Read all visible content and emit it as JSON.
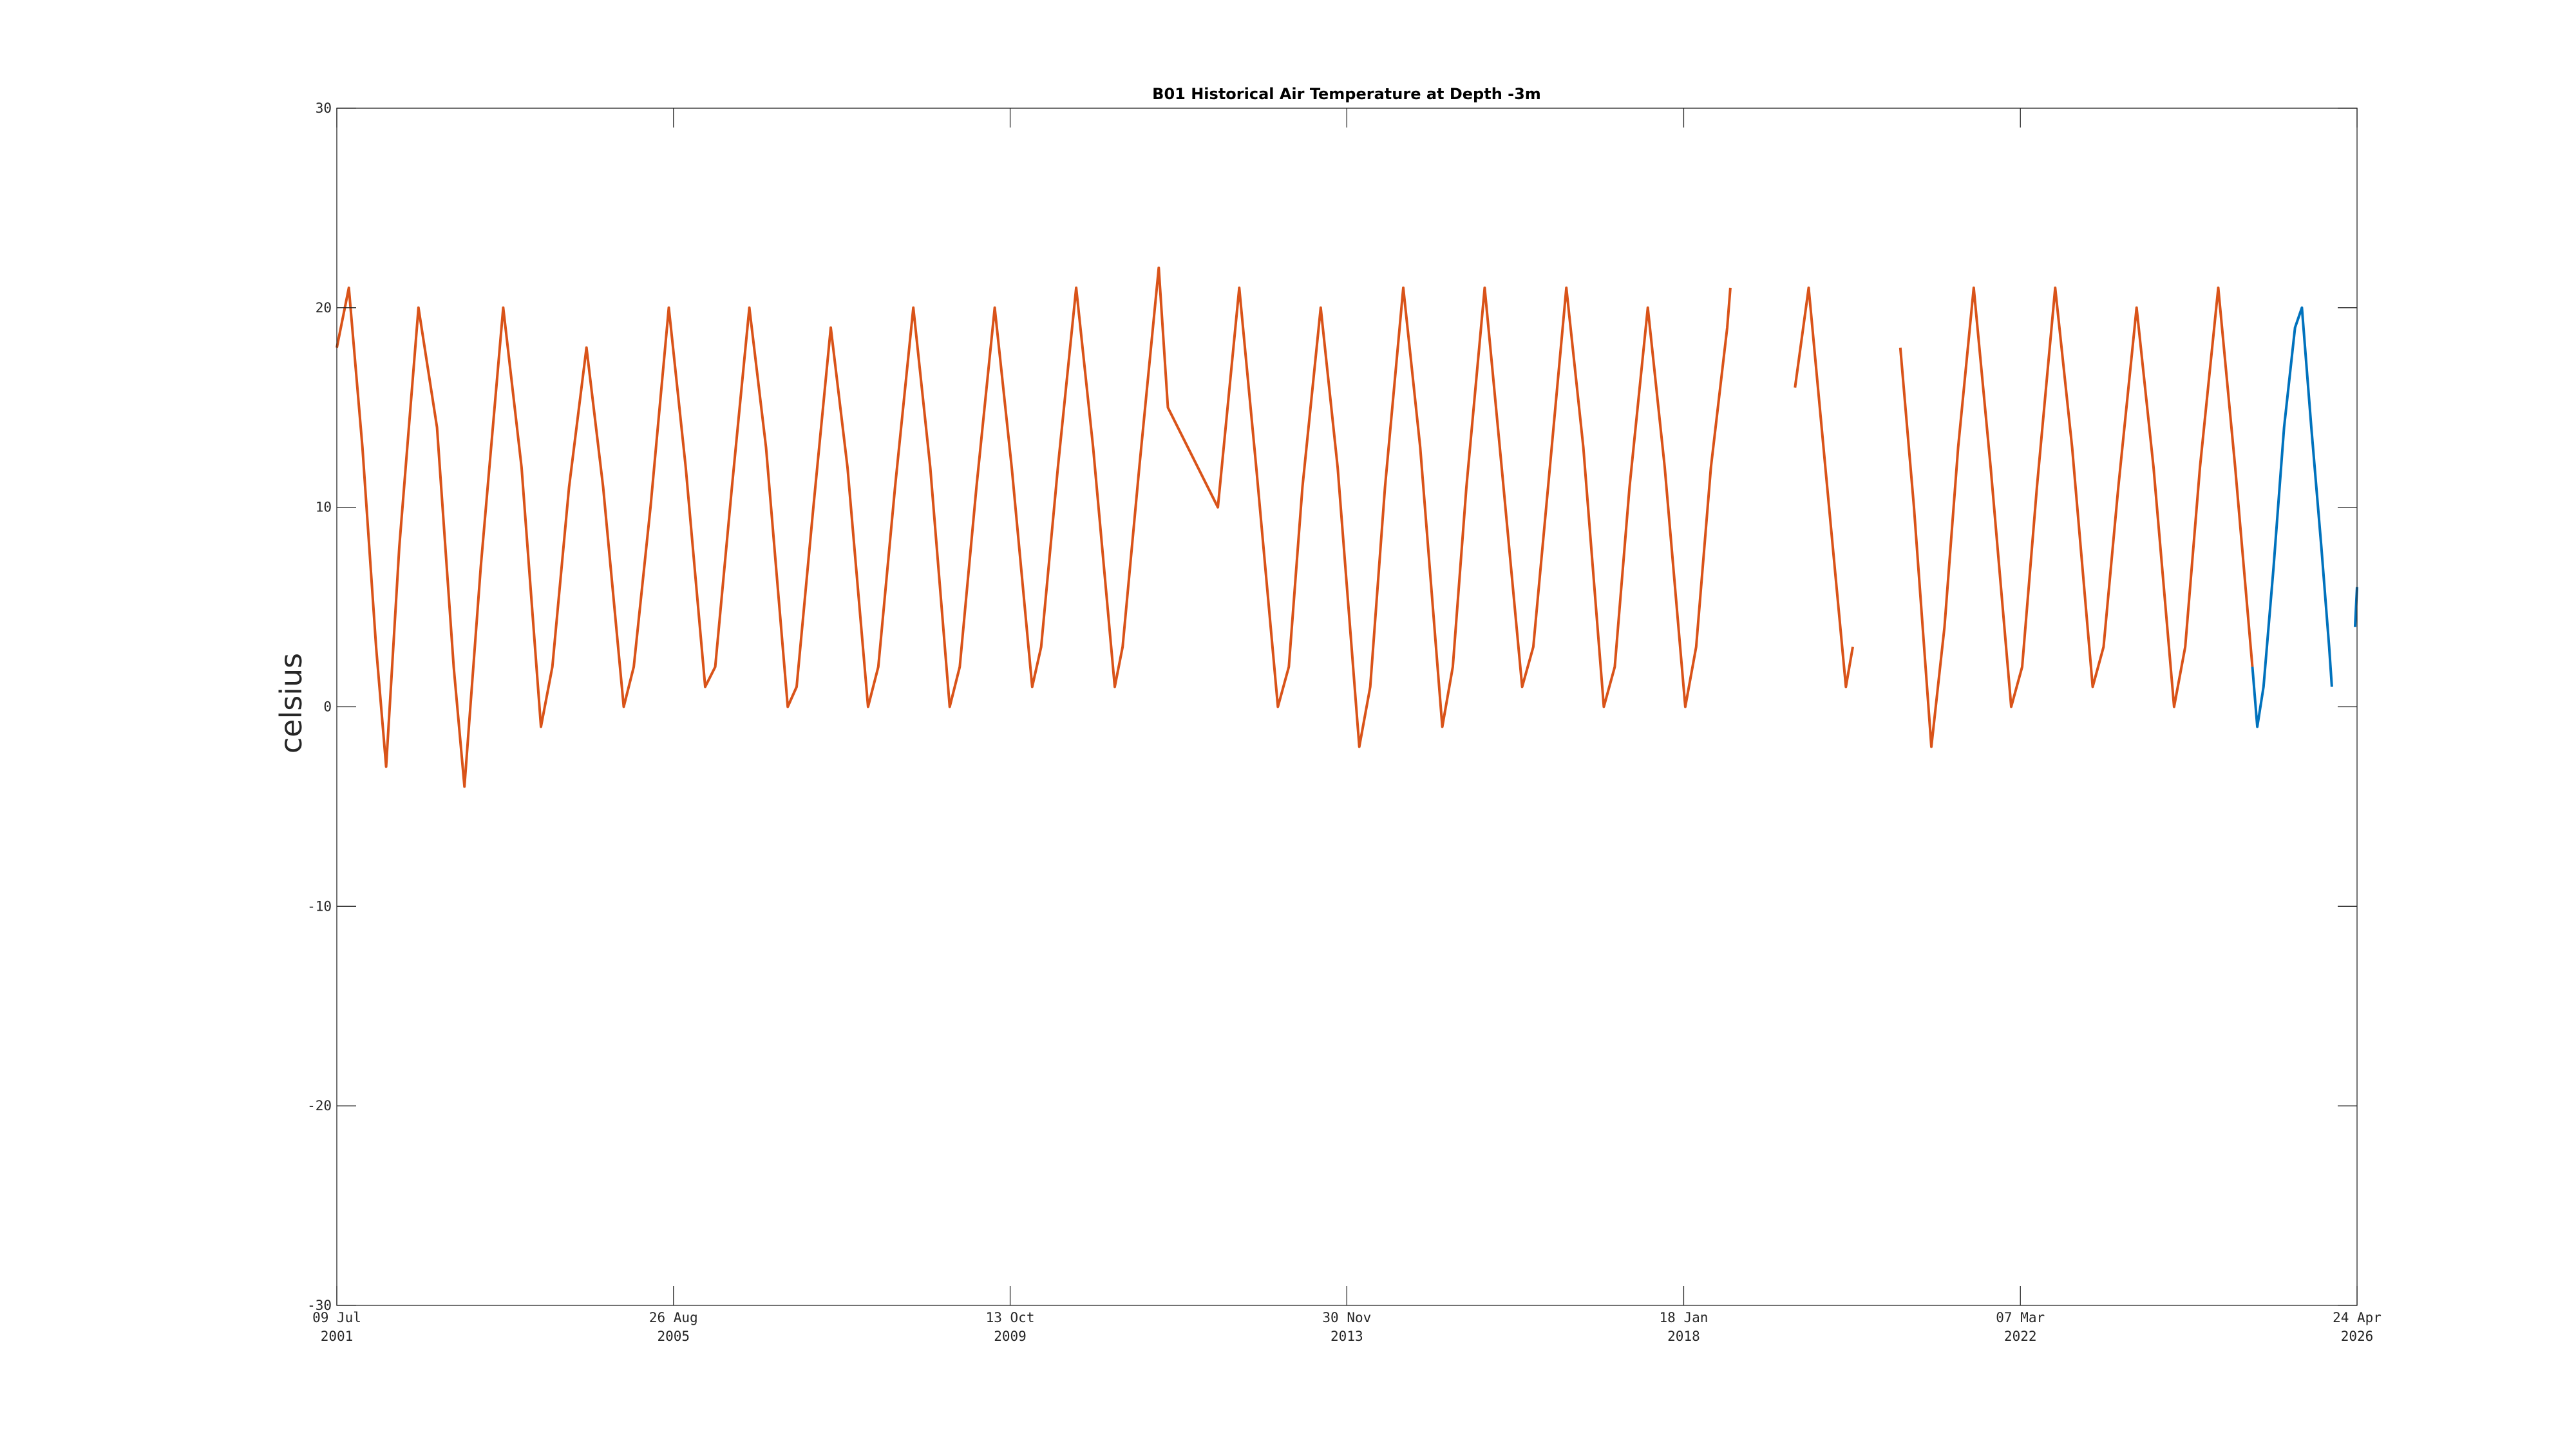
{
  "chart_data": {
    "type": "line",
    "title": "B01 Historical Air Temperature at Depth -3m",
    "ylabel": "celsius",
    "xlabel": "",
    "ylim": [
      -30,
      30
    ],
    "xlim": [
      "2001-07-09",
      "2026-04-24"
    ],
    "grid": false,
    "yticks": [
      {
        "value": -30,
        "label": "-30"
      },
      {
        "value": -20,
        "label": "-20"
      },
      {
        "value": -10,
        "label": "-10"
      },
      {
        "value": 0,
        "label": "0"
      },
      {
        "value": 10,
        "label": "10"
      },
      {
        "value": 20,
        "label": "20"
      },
      {
        "value": 30,
        "label": "30"
      }
    ],
    "xticks": [
      {
        "date": "2001-07-09",
        "line1": "09 Jul",
        "line2": "2001"
      },
      {
        "date": "2005-08-26",
        "line1": "26 Aug",
        "line2": "2005"
      },
      {
        "date": "2009-10-13",
        "line1": "13 Oct",
        "line2": "2009"
      },
      {
        "date": "2013-11-30",
        "line1": "30 Nov",
        "line2": "2013"
      },
      {
        "date": "2018-01-18",
        "line1": "18 Jan",
        "line2": "2018"
      },
      {
        "date": "2022-03-07",
        "line1": "07 Mar",
        "line2": "2022"
      },
      {
        "date": "2026-04-24",
        "line1": "24 Apr",
        "line2": "2026"
      }
    ],
    "series": [
      {
        "color": "#d95319",
        "points": [
          [
            "2001-07-09",
            18
          ],
          [
            "2001-09-01",
            21
          ],
          [
            "2001-11-01",
            13
          ],
          [
            "2002-01-01",
            3
          ],
          [
            "2002-02-15",
            -3
          ],
          [
            "2002-04-15",
            8
          ],
          [
            "2002-07-10",
            20
          ],
          [
            "2002-10-01",
            14
          ],
          [
            "2002-12-15",
            2
          ],
          [
            "2003-02-01",
            -4
          ],
          [
            "2003-04-15",
            7
          ],
          [
            "2003-07-25",
            20
          ],
          [
            "2003-10-15",
            12
          ],
          [
            "2004-01-10",
            -1
          ],
          [
            "2004-03-01",
            2
          ],
          [
            "2004-05-15",
            11
          ],
          [
            "2004-08-01",
            18
          ],
          [
            "2004-10-15",
            11
          ],
          [
            "2005-01-15",
            0
          ],
          [
            "2005-03-01",
            2
          ],
          [
            "2005-05-15",
            10
          ],
          [
            "2005-08-05",
            20
          ],
          [
            "2005-10-20",
            12
          ],
          [
            "2006-01-15",
            1
          ],
          [
            "2006-03-01",
            2
          ],
          [
            "2006-05-15",
            11
          ],
          [
            "2006-08-01",
            20
          ],
          [
            "2006-10-15",
            13
          ],
          [
            "2007-01-20",
            0
          ],
          [
            "2007-03-01",
            1
          ],
          [
            "2007-05-15",
            10
          ],
          [
            "2007-08-01",
            19
          ],
          [
            "2007-10-15",
            12
          ],
          [
            "2008-01-15",
            0
          ],
          [
            "2008-03-01",
            2
          ],
          [
            "2008-05-15",
            11
          ],
          [
            "2008-08-05",
            20
          ],
          [
            "2008-10-20",
            12
          ],
          [
            "2009-01-15",
            0
          ],
          [
            "2009-03-01",
            2
          ],
          [
            "2009-05-15",
            11
          ],
          [
            "2009-08-05",
            20
          ],
          [
            "2009-10-20",
            12
          ],
          [
            "2010-01-20",
            1
          ],
          [
            "2010-03-01",
            3
          ],
          [
            "2010-05-15",
            12
          ],
          [
            "2010-08-05",
            21
          ],
          [
            "2010-10-20",
            13
          ],
          [
            "2011-01-25",
            1
          ],
          [
            "2011-03-01",
            3
          ],
          [
            "2011-05-15",
            12
          ],
          [
            "2011-08-10",
            22
          ],
          [
            "2011-09-20",
            15
          ],
          [
            "2012-05-01",
            10
          ],
          [
            "2012-08-05",
            21
          ],
          [
            "2012-10-20",
            12
          ],
          [
            "2013-01-25",
            0
          ],
          [
            "2013-03-15",
            2
          ],
          [
            "2013-05-15",
            11
          ],
          [
            "2013-08-05",
            20
          ],
          [
            "2013-10-20",
            12
          ],
          [
            "2014-01-25",
            -2
          ],
          [
            "2014-03-15",
            1
          ],
          [
            "2014-05-20",
            11
          ],
          [
            "2014-08-10",
            21
          ],
          [
            "2014-10-25",
            13
          ],
          [
            "2015-02-01",
            -1
          ],
          [
            "2015-03-20",
            2
          ],
          [
            "2015-05-20",
            11
          ],
          [
            "2015-08-10",
            21
          ],
          [
            "2015-10-25",
            12
          ],
          [
            "2016-01-25",
            1
          ],
          [
            "2016-03-15",
            3
          ],
          [
            "2016-05-20",
            11
          ],
          [
            "2016-08-10",
            21
          ],
          [
            "2016-10-25",
            13
          ],
          [
            "2017-01-25",
            0
          ],
          [
            "2017-03-15",
            2
          ],
          [
            "2017-05-20",
            11
          ],
          [
            "2017-08-10",
            20
          ],
          [
            "2017-10-25",
            12
          ],
          [
            "2018-01-25",
            0
          ],
          [
            "2018-03-15",
            3
          ],
          [
            "2018-05-20",
            12
          ],
          [
            "2018-08-01",
            19
          ],
          [
            "2018-08-15",
            21
          ],
          null,
          [
            "2019-06-01",
            16
          ],
          [
            "2019-08-01",
            21
          ],
          [
            "2019-10-15",
            12
          ],
          [
            "2020-01-15",
            1
          ],
          [
            "2020-02-15",
            3
          ],
          null,
          [
            "2020-09-15",
            18
          ],
          [
            "2020-11-15",
            10
          ],
          [
            "2021-02-01",
            -2
          ],
          [
            "2021-04-01",
            4
          ],
          [
            "2021-06-01",
            13
          ],
          [
            "2021-08-10",
            21
          ],
          [
            "2021-10-25",
            12
          ],
          [
            "2022-01-25",
            0
          ],
          [
            "2022-03-15",
            2
          ],
          [
            "2022-05-20",
            11
          ],
          [
            "2022-08-10",
            21
          ],
          [
            "2022-10-25",
            13
          ],
          [
            "2023-01-25",
            1
          ],
          [
            "2023-03-15",
            3
          ],
          [
            "2023-05-20",
            11
          ],
          [
            "2023-08-10",
            20
          ],
          [
            "2023-10-25",
            12
          ],
          [
            "2024-01-25",
            0
          ],
          [
            "2024-03-15",
            3
          ],
          [
            "2024-05-20",
            12
          ],
          [
            "2024-08-10",
            21
          ],
          [
            "2024-10-25",
            12
          ],
          [
            "2025-01-10",
            2
          ]
        ]
      },
      {
        "color": "#0072bd",
        "points": [
          [
            "2025-01-10",
            2
          ],
          [
            "2025-02-01",
            -1
          ],
          [
            "2025-03-01",
            1
          ],
          [
            "2025-04-15",
            7
          ],
          [
            "2025-06-01",
            14
          ],
          [
            "2025-07-20",
            19
          ],
          [
            "2025-08-20",
            20
          ],
          [
            "2025-10-01",
            14
          ],
          [
            "2025-11-15",
            8
          ],
          [
            "2025-12-20",
            3
          ],
          [
            "2026-01-01",
            1
          ],
          null,
          [
            "2026-04-15",
            4
          ],
          [
            "2026-04-24",
            6
          ]
        ]
      }
    ]
  }
}
